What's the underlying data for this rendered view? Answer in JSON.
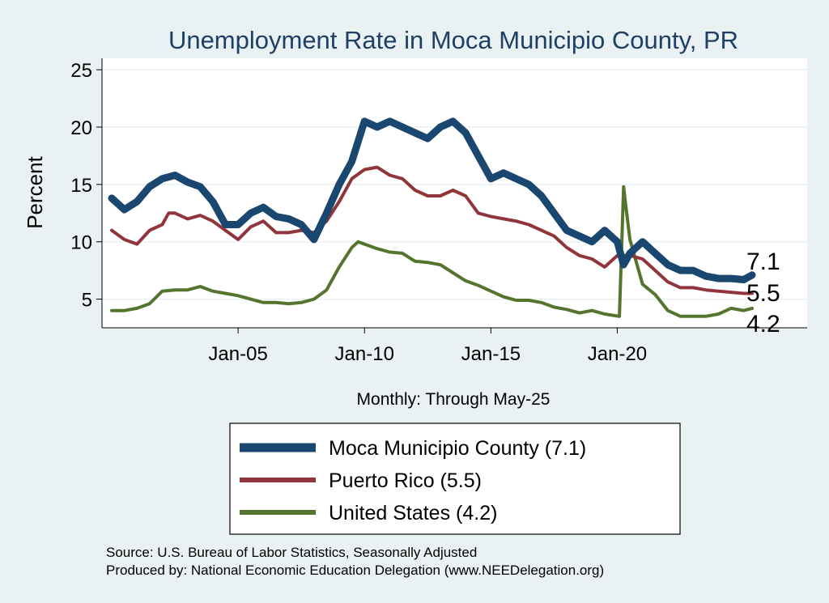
{
  "chart_data": {
    "type": "line",
    "title": "Unemployment Rate in Moca Municipio  County, PR",
    "ylabel": "Percent",
    "xlabel": "Monthly: Through May-25",
    "x_range": [
      "Jan-2000",
      "May-2025"
    ],
    "ylim": [
      2.5,
      26
    ],
    "y_ticks": [
      5,
      10,
      15,
      20,
      25
    ],
    "x_ticks": [
      {
        "date": "2005-01",
        "label": "Jan-05"
      },
      {
        "date": "2010-01",
        "label": "Jan-10"
      },
      {
        "date": "2015-01",
        "label": "Jan-15"
      },
      {
        "date": "2020-01",
        "label": "Jan-20"
      }
    ],
    "grid": true,
    "legend_position": "bottom",
    "series": [
      {
        "name": "Moca Municipio  County (7.1)",
        "color": "#1a476f",
        "end_value": "7.1",
        "points": [
          [
            "2000-01",
            13.8
          ],
          [
            "2000-07",
            12.8
          ],
          [
            "2001-01",
            13.5
          ],
          [
            "2001-07",
            14.8
          ],
          [
            "2002-01",
            15.5
          ],
          [
            "2002-07",
            15.8
          ],
          [
            "2003-01",
            15.2
          ],
          [
            "2003-07",
            14.8
          ],
          [
            "2004-01",
            13.5
          ],
          [
            "2004-07",
            11.5
          ],
          [
            "2005-01",
            11.5
          ],
          [
            "2005-07",
            12.5
          ],
          [
            "2006-01",
            13.0
          ],
          [
            "2006-07",
            12.2
          ],
          [
            "2007-01",
            12.0
          ],
          [
            "2007-07",
            11.5
          ],
          [
            "2008-01",
            10.2
          ],
          [
            "2008-07",
            12.5
          ],
          [
            "2009-01",
            15.0
          ],
          [
            "2009-07",
            17.0
          ],
          [
            "2010-01",
            20.5
          ],
          [
            "2010-07",
            20.0
          ],
          [
            "2011-01",
            20.5
          ],
          [
            "2011-07",
            20.0
          ],
          [
            "2012-01",
            19.5
          ],
          [
            "2012-07",
            19.0
          ],
          [
            "2013-01",
            20.0
          ],
          [
            "2013-07",
            20.5
          ],
          [
            "2014-01",
            19.5
          ],
          [
            "2014-07",
            17.5
          ],
          [
            "2015-01",
            15.5
          ],
          [
            "2015-07",
            16.0
          ],
          [
            "2016-01",
            15.5
          ],
          [
            "2016-07",
            15.0
          ],
          [
            "2017-01",
            14.0
          ],
          [
            "2017-07",
            12.5
          ],
          [
            "2018-01",
            11.0
          ],
          [
            "2018-07",
            10.5
          ],
          [
            "2019-01",
            10.0
          ],
          [
            "2019-07",
            11.0
          ],
          [
            "2020-01",
            10.0
          ],
          [
            "2020-04",
            8.0
          ],
          [
            "2020-07",
            9.0
          ],
          [
            "2021-01",
            10.0
          ],
          [
            "2021-07",
            9.0
          ],
          [
            "2022-01",
            8.0
          ],
          [
            "2022-07",
            7.5
          ],
          [
            "2023-01",
            7.5
          ],
          [
            "2023-07",
            7.0
          ],
          [
            "2024-01",
            6.8
          ],
          [
            "2024-07",
            6.8
          ],
          [
            "2025-01",
            6.7
          ],
          [
            "2025-05",
            7.1
          ]
        ]
      },
      {
        "name": "Puerto Rico (5.5)",
        "color": "#90353b",
        "end_value": "5.5",
        "points": [
          [
            "2000-01",
            11.0
          ],
          [
            "2000-07",
            10.2
          ],
          [
            "2001-01",
            9.8
          ],
          [
            "2001-07",
            11.0
          ],
          [
            "2002-01",
            11.5
          ],
          [
            "2002-04",
            12.5
          ],
          [
            "2002-07",
            12.5
          ],
          [
            "2003-01",
            12.0
          ],
          [
            "2003-07",
            12.3
          ],
          [
            "2004-01",
            11.8
          ],
          [
            "2004-07",
            11.0
          ],
          [
            "2005-01",
            10.2
          ],
          [
            "2005-07",
            11.3
          ],
          [
            "2006-01",
            11.8
          ],
          [
            "2006-07",
            10.8
          ],
          [
            "2007-01",
            10.8
          ],
          [
            "2007-07",
            11.0
          ],
          [
            "2008-01",
            10.8
          ],
          [
            "2008-07",
            11.8
          ],
          [
            "2009-01",
            13.5
          ],
          [
            "2009-07",
            15.5
          ],
          [
            "2010-01",
            16.3
          ],
          [
            "2010-07",
            16.5
          ],
          [
            "2011-01",
            15.8
          ],
          [
            "2011-07",
            15.5
          ],
          [
            "2012-01",
            14.5
          ],
          [
            "2012-07",
            14.0
          ],
          [
            "2013-01",
            14.0
          ],
          [
            "2013-07",
            14.5
          ],
          [
            "2014-01",
            14.0
          ],
          [
            "2014-07",
            12.5
          ],
          [
            "2015-01",
            12.2
          ],
          [
            "2015-07",
            12.0
          ],
          [
            "2016-01",
            11.8
          ],
          [
            "2016-07",
            11.5
          ],
          [
            "2017-01",
            11.0
          ],
          [
            "2017-07",
            10.5
          ],
          [
            "2018-01",
            9.5
          ],
          [
            "2018-07",
            8.8
          ],
          [
            "2019-01",
            8.5
          ],
          [
            "2019-07",
            7.8
          ],
          [
            "2020-01",
            8.8
          ],
          [
            "2020-07",
            8.8
          ],
          [
            "2021-01",
            8.5
          ],
          [
            "2021-07",
            7.5
          ],
          [
            "2022-01",
            6.5
          ],
          [
            "2022-07",
            6.0
          ],
          [
            "2023-01",
            6.0
          ],
          [
            "2023-07",
            5.8
          ],
          [
            "2024-01",
            5.7
          ],
          [
            "2024-07",
            5.6
          ],
          [
            "2025-01",
            5.5
          ],
          [
            "2025-05",
            5.5
          ]
        ]
      },
      {
        "name": "United States (4.2)",
        "color": "#55752f",
        "end_value": "4.2",
        "points": [
          [
            "2000-01",
            4.0
          ],
          [
            "2000-07",
            4.0
          ],
          [
            "2001-01",
            4.2
          ],
          [
            "2001-07",
            4.6
          ],
          [
            "2002-01",
            5.7
          ],
          [
            "2002-07",
            5.8
          ],
          [
            "2003-01",
            5.8
          ],
          [
            "2003-07",
            6.1
          ],
          [
            "2004-01",
            5.7
          ],
          [
            "2004-07",
            5.5
          ],
          [
            "2005-01",
            5.3
          ],
          [
            "2005-07",
            5.0
          ],
          [
            "2006-01",
            4.7
          ],
          [
            "2006-07",
            4.7
          ],
          [
            "2007-01",
            4.6
          ],
          [
            "2007-07",
            4.7
          ],
          [
            "2008-01",
            5.0
          ],
          [
            "2008-07",
            5.8
          ],
          [
            "2009-01",
            7.8
          ],
          [
            "2009-07",
            9.5
          ],
          [
            "2009-10",
            10.0
          ],
          [
            "2010-01",
            9.8
          ],
          [
            "2010-07",
            9.4
          ],
          [
            "2011-01",
            9.1
          ],
          [
            "2011-07",
            9.0
          ],
          [
            "2012-01",
            8.3
          ],
          [
            "2012-07",
            8.2
          ],
          [
            "2013-01",
            8.0
          ],
          [
            "2013-07",
            7.3
          ],
          [
            "2014-01",
            6.6
          ],
          [
            "2014-07",
            6.2
          ],
          [
            "2015-01",
            5.7
          ],
          [
            "2015-07",
            5.2
          ],
          [
            "2016-01",
            4.9
          ],
          [
            "2016-07",
            4.9
          ],
          [
            "2017-01",
            4.7
          ],
          [
            "2017-07",
            4.3
          ],
          [
            "2018-01",
            4.1
          ],
          [
            "2018-07",
            3.8
          ],
          [
            "2019-01",
            4.0
          ],
          [
            "2019-07",
            3.7
          ],
          [
            "2020-02",
            3.5
          ],
          [
            "2020-04",
            14.8
          ],
          [
            "2020-05",
            13.2
          ],
          [
            "2020-07",
            10.2
          ],
          [
            "2021-01",
            6.3
          ],
          [
            "2021-07",
            5.4
          ],
          [
            "2022-01",
            4.0
          ],
          [
            "2022-07",
            3.5
          ],
          [
            "2023-01",
            3.5
          ],
          [
            "2023-07",
            3.5
          ],
          [
            "2024-01",
            3.7
          ],
          [
            "2024-07",
            4.2
          ],
          [
            "2025-01",
            4.0
          ],
          [
            "2025-05",
            4.2
          ]
        ]
      }
    ]
  },
  "source_line": "Source: U.S. Bureau of Labor Statistics, Seasonally Adjusted",
  "produced_line": "Produced by: National Economic Education Delegation (www.NEEDelegation.org)"
}
